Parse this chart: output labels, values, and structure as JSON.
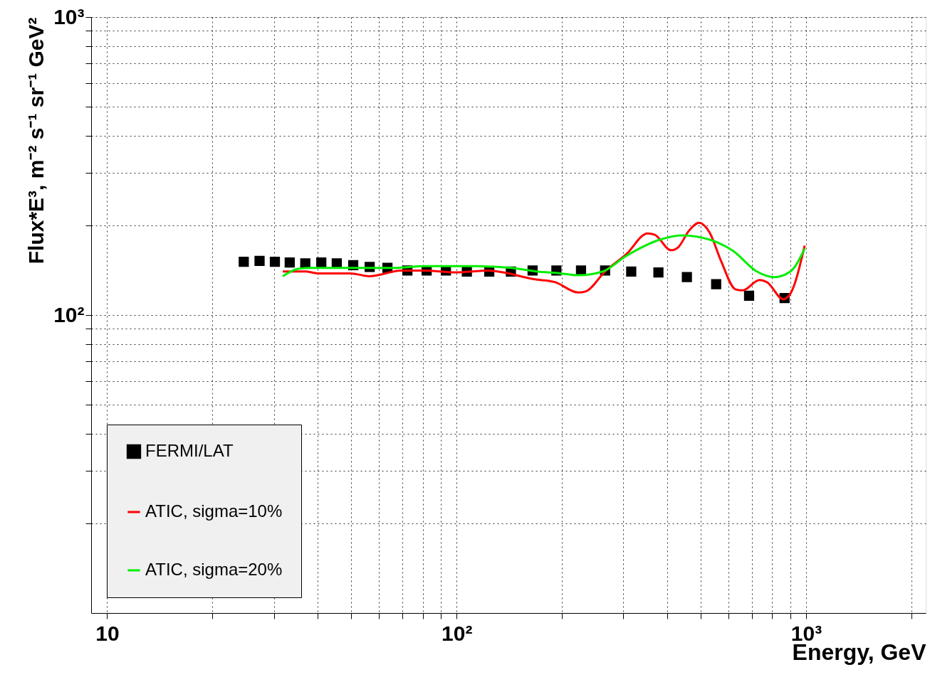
{
  "chart_data": {
    "type": "scatter",
    "xlabel": "Energy, GeV",
    "ylabel": "Flux*E³, m⁻² s⁻¹ sr⁻¹ GeV²",
    "log": "xy",
    "grid": true,
    "legend": "bottom left",
    "xlim": [
      9,
      2200
    ],
    "ylim": [
      10,
      1000
    ],
    "xticks": [
      {
        "value": 10,
        "label": "10"
      },
      {
        "value": 20,
        "label": null
      },
      {
        "value": 30,
        "label": null
      },
      {
        "value": 40,
        "label": null
      },
      {
        "value": 50,
        "label": null
      },
      {
        "value": 60,
        "label": null
      },
      {
        "value": 70,
        "label": null
      },
      {
        "value": 80,
        "label": null
      },
      {
        "value": 90,
        "label": null
      },
      {
        "value": 100,
        "label": "10²"
      },
      {
        "value": 200,
        "label": null
      },
      {
        "value": 300,
        "label": null
      },
      {
        "value": 400,
        "label": null
      },
      {
        "value": 500,
        "label": null
      },
      {
        "value": 600,
        "label": null
      },
      {
        "value": 700,
        "label": null
      },
      {
        "value": 800,
        "label": null
      },
      {
        "value": 900,
        "label": null
      },
      {
        "value": 1000,
        "label": "10³"
      },
      {
        "value": 2000,
        "label": null
      }
    ],
    "yticks": [
      {
        "value": 20,
        "label": null
      },
      {
        "value": 30,
        "label": null
      },
      {
        "value": 40,
        "label": null
      },
      {
        "value": 50,
        "label": null
      },
      {
        "value": 60,
        "label": null
      },
      {
        "value": 70,
        "label": null
      },
      {
        "value": 80,
        "label": null
      },
      {
        "value": 90,
        "label": null
      },
      {
        "value": 100,
        "label": "10²"
      },
      {
        "value": 200,
        "label": null
      },
      {
        "value": 300,
        "label": null
      },
      {
        "value": 400,
        "label": null
      },
      {
        "value": 500,
        "label": null
      },
      {
        "value": 600,
        "label": null
      },
      {
        "value": 700,
        "label": null
      },
      {
        "value": 800,
        "label": null
      },
      {
        "value": 900,
        "label": null
      },
      {
        "value": 1000,
        "label": "10³"
      }
    ],
    "series": [
      {
        "name": "FERMI/LAT",
        "marker": "square",
        "color": "#000000",
        "x": [
          24.6,
          27.3,
          30.2,
          33.3,
          36.9,
          41.0,
          45.4,
          50.6,
          56.4,
          63.4,
          72.3,
          82.1,
          93.2,
          107,
          124,
          143,
          165,
          193,
          227,
          266,
          316,
          378,
          456,
          553,
          687,
          868
        ],
        "values": [
          151,
          152,
          151,
          150,
          149,
          150,
          149,
          147,
          145,
          144,
          141,
          141,
          141,
          140,
          140,
          140,
          141,
          141,
          141,
          141,
          140,
          139,
          134,
          127,
          116,
          114
        ]
      },
      {
        "name": "ATIC, sigma=10%",
        "type": "line",
        "marker": "none",
        "line_style": "solid",
        "color": "#ff0000",
        "x": [
          31.8,
          36.9,
          40.0,
          49.6,
          56.4,
          61.1,
          69.0,
          80.9,
          99.1,
          124,
          136,
          166,
          191,
          223,
          234,
          266,
          306,
          352,
          369,
          411,
          431,
          461,
          494,
          530,
          571,
          628,
          658,
          736,
          772,
          861,
          902,
          991
        ],
        "values": [
          140,
          140,
          138,
          138,
          135,
          137,
          141,
          141,
          139,
          141,
          139,
          132,
          129,
          119,
          120,
          140,
          160,
          188,
          186,
          165,
          169,
          191,
          204,
          189,
          152,
          122,
          121,
          131,
          129,
          113,
          118,
          171
        ]
      },
      {
        "name": "ATIC, sigma=20%",
        "type": "line",
        "marker": "none",
        "line_style": "solid",
        "color": "#00ee00",
        "x": [
          31.8,
          35.2,
          38.2,
          49.6,
          65.8,
          80.9,
          114,
          144,
          169,
          198,
          223,
          262,
          306,
          382,
          440,
          530,
          619,
          723,
          810,
          902,
          991
        ],
        "values": [
          135,
          143,
          144,
          144,
          144,
          146,
          146,
          144,
          140,
          138,
          136,
          140,
          158,
          179,
          185,
          179,
          164,
          140,
          134,
          140,
          167
        ]
      }
    ]
  }
}
